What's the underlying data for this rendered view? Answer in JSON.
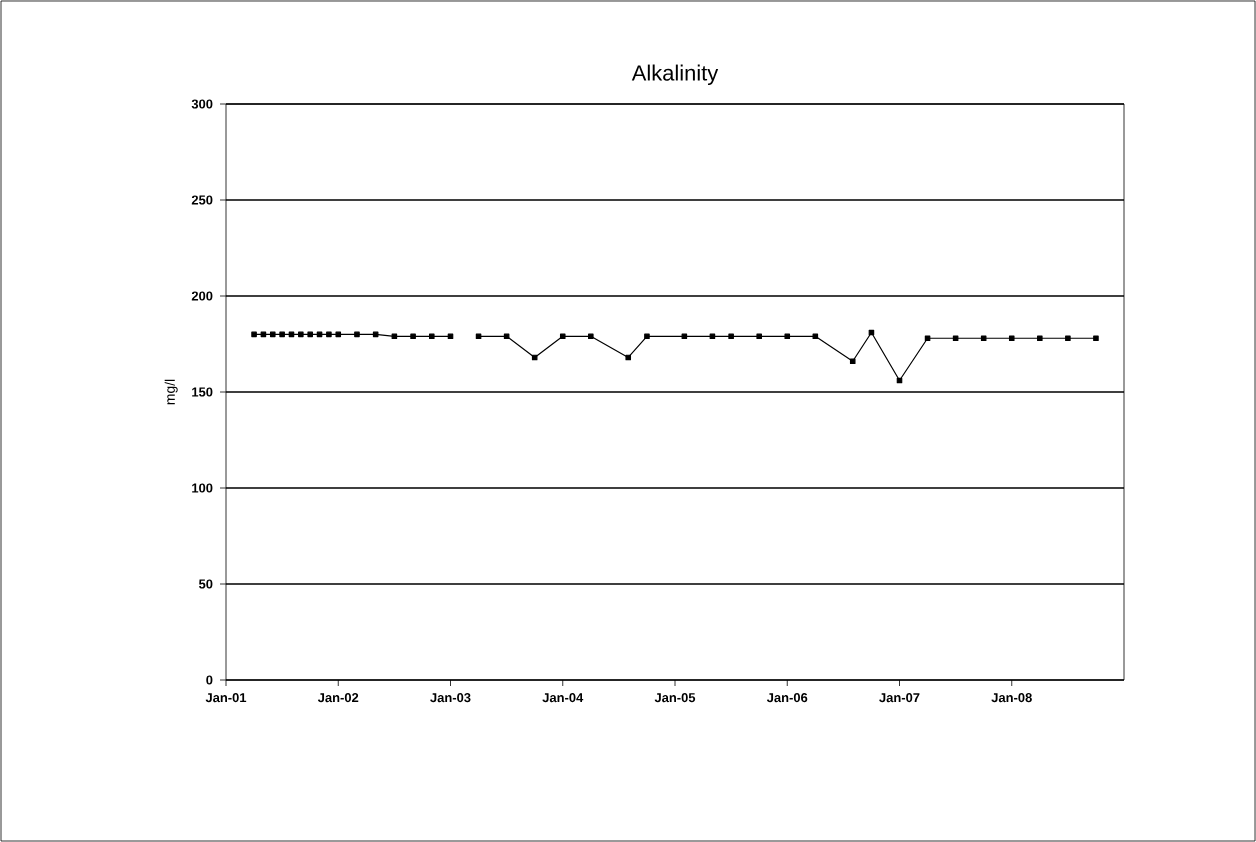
{
  "chart_data": {
    "type": "line",
    "title": "Alkalinity",
    "ylabel": "mg/l",
    "x": [
      "2001-04",
      "2001-05",
      "2001-06",
      "2001-07",
      "2001-08",
      "2001-09",
      "2001-10",
      "2001-11",
      "2001-12",
      "2002-01",
      "2002-03",
      "2002-05",
      "2002-07",
      "2002-09",
      "2002-11",
      "2003-01",
      "2003-03",
      "2003-04",
      "2003-07",
      "2003-10",
      "2004-01",
      "2004-04",
      "2004-08",
      "2004-10",
      "2005-02",
      "2005-05",
      "2005-07",
      "2005-10",
      "2006-01",
      "2006-04",
      "2006-08",
      "2006-10",
      "2007-01",
      "2007-04",
      "2007-07",
      "2007-10",
      "2008-01",
      "2008-04",
      "2008-07",
      "2008-10"
    ],
    "series": [
      {
        "color": "#000000",
        "values": [
          180,
          180,
          180,
          180,
          180,
          180,
          180,
          180,
          180,
          180,
          180,
          180,
          179,
          179,
          179,
          179,
          null,
          179,
          179,
          168,
          179,
          179,
          168,
          179,
          179,
          179,
          179,
          179,
          179,
          179,
          166,
          181,
          156,
          178,
          178,
          178,
          178,
          178,
          178,
          178
        ]
      }
    ],
    "xlim": [
      "2001-01",
      "2009-01"
    ],
    "xticks": [
      {
        "value": "2001-01",
        "label": "Jan-01"
      },
      {
        "value": "2002-01",
        "label": "Jan-02"
      },
      {
        "value": "2003-01",
        "label": "Jan-03"
      },
      {
        "value": "2004-01",
        "label": "Jan-04"
      },
      {
        "value": "2005-01",
        "label": "Jan-05"
      },
      {
        "value": "2006-01",
        "label": "Jan-06"
      },
      {
        "value": "2007-01",
        "label": "Jan-07"
      },
      {
        "value": "2008-01",
        "label": "Jan-08"
      }
    ],
    "ylim": [
      0,
      300
    ],
    "yticks": [
      0,
      50,
      100,
      150,
      200,
      250,
      300
    ],
    "grid": "y",
    "marker": "square",
    "line_style": "solid"
  }
}
